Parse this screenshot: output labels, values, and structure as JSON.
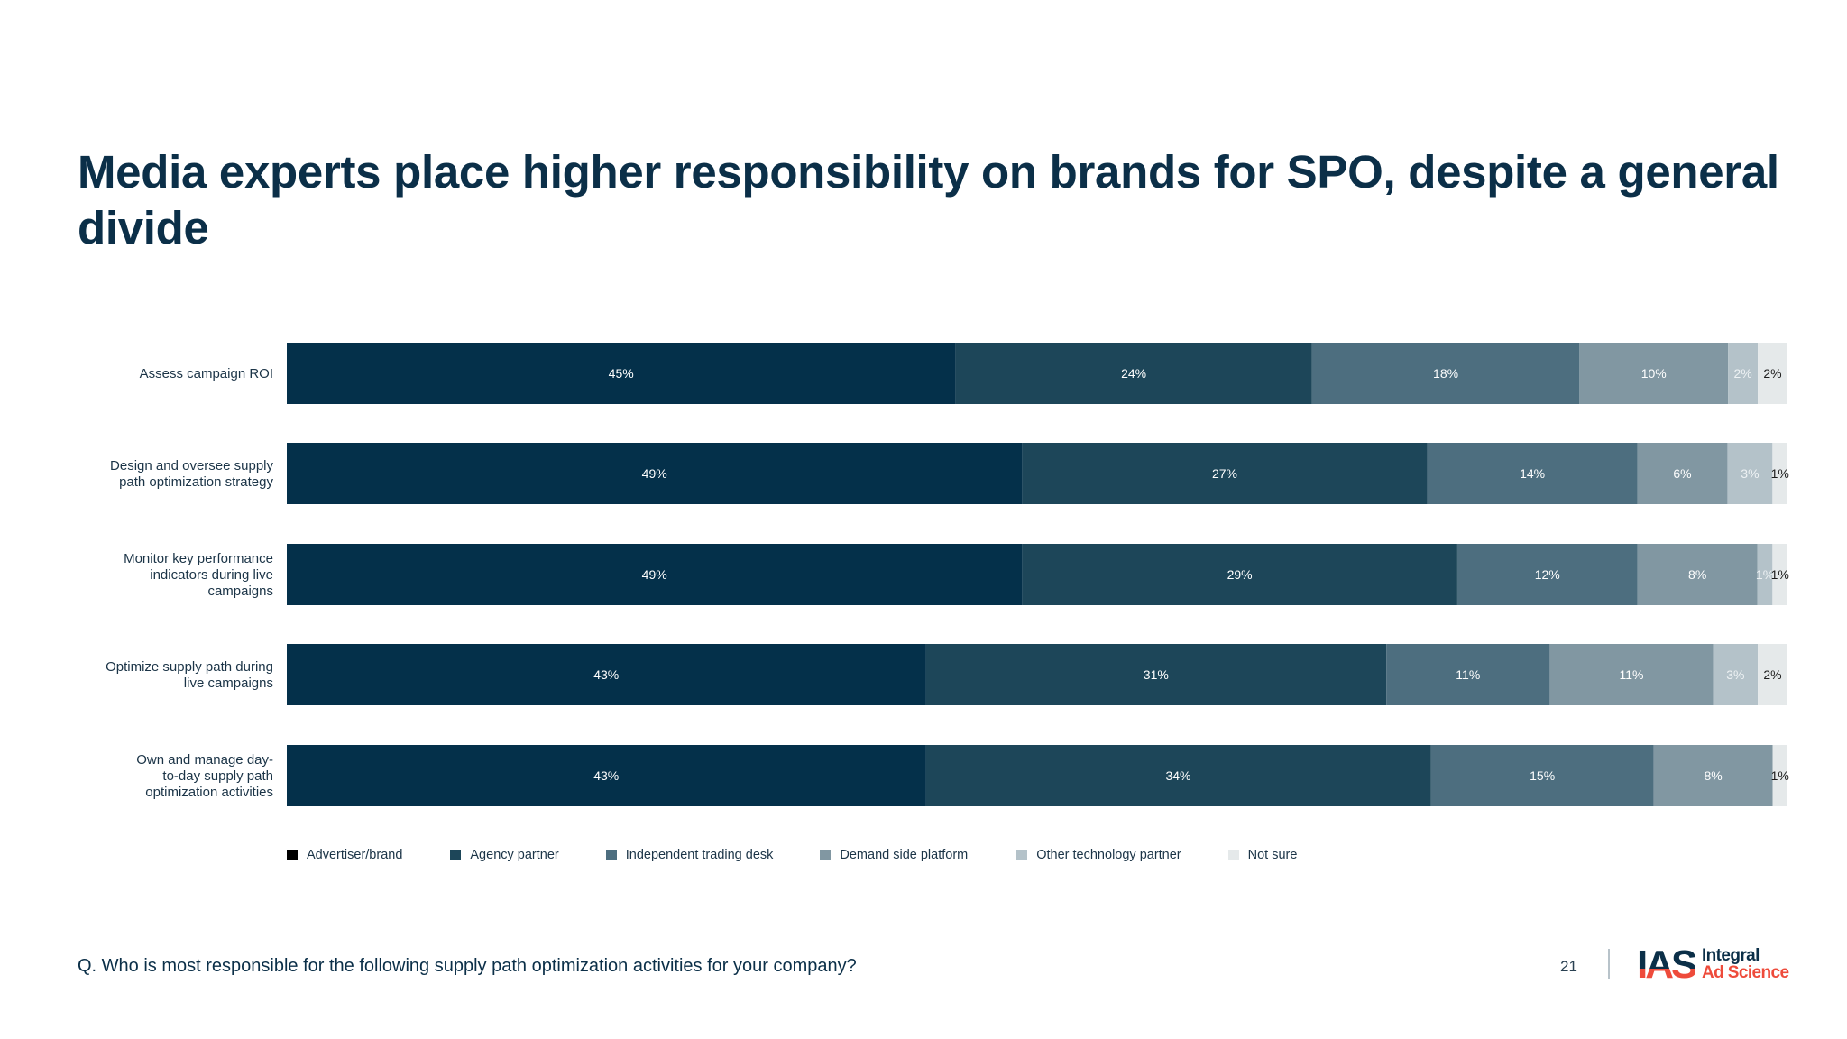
{
  "slide": {
    "title": "Media experts place higher responsibility on brands for SPO, despite a general divide",
    "question": "Q. Who is most responsible for the following supply path optimization activities for your company?",
    "page_number": "21",
    "logo": {
      "mark": "IAS",
      "line1": "Integral",
      "line2": "Ad Science",
      "icon": "ias-logo-icon"
    }
  },
  "colors": {
    "series": [
      "#04304a",
      "#1d4659",
      "#4d6e7f",
      "#8197a2",
      "#b4c2c9",
      "#e5e9ea"
    ],
    "label_light": "#ffffff",
    "label_dark": "#1b1b1b",
    "brand_navy": "#0b2f48",
    "brand_red": "#ee4b3b"
  },
  "chart_data": {
    "type": "bar",
    "orientation": "horizontal",
    "stacked": true,
    "title": "Media experts place higher responsibility on brands for SPO, despite a general divide",
    "xlabel": "",
    "ylabel": "",
    "xlim": [
      0,
      100
    ],
    "unit": "%",
    "grid": false,
    "legend_position": "bottom",
    "categories": [
      "Assess campaign ROI",
      "Design and oversee supply path optimization strategy",
      "Monitor key performance indicators during live campaigns",
      "Optimize supply path during live campaigns",
      "Own and manage day-to-day supply path optimization activities"
    ],
    "category_lines": [
      [
        "Assess campaign ROI"
      ],
      [
        "Design and oversee supply",
        "path optimization strategy"
      ],
      [
        "Monitor key performance",
        "indicators during live",
        "campaigns"
      ],
      [
        "Optimize supply path during",
        "live campaigns"
      ],
      [
        "Own and manage day-",
        "to-day supply path",
        "optimization activities"
      ]
    ],
    "series": [
      {
        "name": "Advertiser/brand",
        "values": [
          45,
          49,
          49,
          43,
          43
        ]
      },
      {
        "name": "Agency partner",
        "values": [
          24,
          27,
          29,
          31,
          34
        ]
      },
      {
        "name": "Independent trading desk",
        "values": [
          18,
          14,
          12,
          11,
          15
        ]
      },
      {
        "name": "Demand side platform",
        "values": [
          10,
          6,
          8,
          11,
          8
        ]
      },
      {
        "name": "Other technology partner",
        "values": [
          2,
          3,
          1,
          3,
          0
        ]
      },
      {
        "name": "Not sure",
        "values": [
          2,
          1,
          1,
          2,
          1
        ]
      }
    ]
  }
}
